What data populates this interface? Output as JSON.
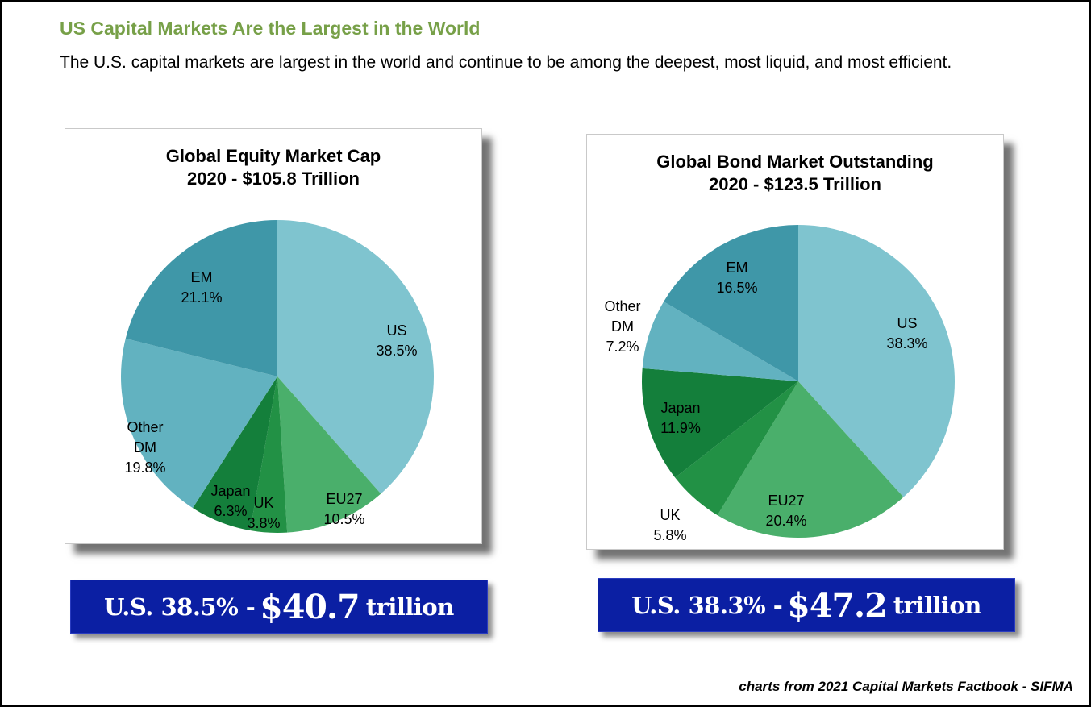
{
  "heading": "US Capital Markets Are the Largest in the World",
  "intro": "The U.S. capital markets are largest in the world and continue to be among the deepest, most liquid, and most efficient.",
  "chart_data": [
    {
      "type": "pie",
      "title": "Global Equity Market Cap",
      "subtitle": "2020 - $105.8 Trillion",
      "slices": [
        {
          "label": "US",
          "value": 38.5,
          "pct": "38.5%",
          "color": "#7fc4cf"
        },
        {
          "label": "EU27",
          "value": 10.5,
          "pct": "10.5%",
          "color": "#4aaf6b"
        },
        {
          "label": "UK",
          "value": 3.8,
          "pct": "3.8%",
          "color": "#229145"
        },
        {
          "label": "Japan",
          "value": 6.3,
          "pct": "6.3%",
          "color": "#147f3b"
        },
        {
          "label": "Other DM",
          "value": 19.8,
          "pct": "19.8%",
          "color": "#62b2c0"
        },
        {
          "label": "EM",
          "value": 21.1,
          "pct": "21.1%",
          "color": "#3f97a8"
        }
      ]
    },
    {
      "type": "pie",
      "title": "Global Bond Market Outstanding",
      "subtitle": "2020 - $123.5 Trillion",
      "slices": [
        {
          "label": "US",
          "value": 38.3,
          "pct": "38.3%",
          "color": "#7fc4cf"
        },
        {
          "label": "EU27",
          "value": 20.4,
          "pct": "20.4%",
          "color": "#4aaf6b"
        },
        {
          "label": "UK",
          "value": 5.8,
          "pct": "5.8%",
          "color": "#229145"
        },
        {
          "label": "Japan",
          "value": 11.9,
          "pct": "11.9%",
          "color": "#147f3b"
        },
        {
          "label": "Other DM",
          "value": 7.2,
          "pct": "7.2%",
          "color": "#62b2c0"
        },
        {
          "label": "EM",
          "value": 16.5,
          "pct": "16.5%",
          "color": "#3f97a8"
        }
      ]
    }
  ],
  "banners": [
    {
      "prefix": "U.S. 38.5% -",
      "amount": "$40.7",
      "suffix": "trillion"
    },
    {
      "prefix": "U.S. 38.3% -",
      "amount": "$47.2",
      "suffix": "trillion"
    }
  ],
  "credit": "charts from 2021 Capital Markets Factbook - SIFMA",
  "colors": {
    "heading": "#77a048",
    "banner": "#0b1fa3"
  }
}
